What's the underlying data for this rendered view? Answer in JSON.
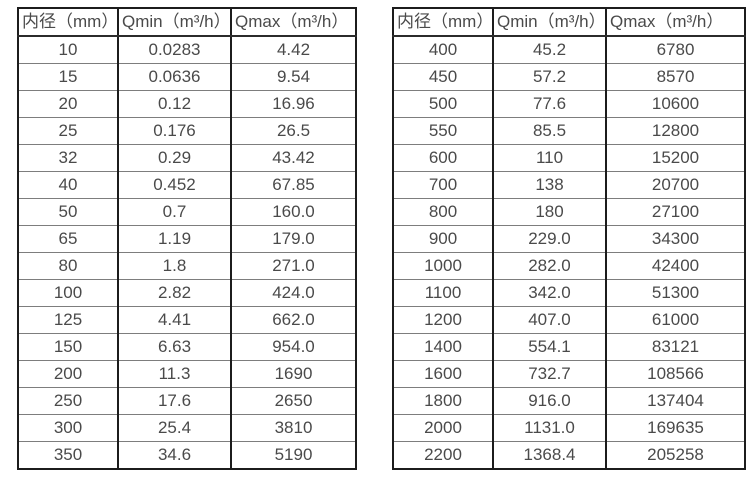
{
  "colors": {
    "background": "#ffffff",
    "border_strong": "#1c1c1c",
    "border_light": "#7d7d7d",
    "text": "#4a4a4a"
  },
  "tables": [
    {
      "name": "small-diameter-spec-table",
      "headers": [
        "内径（mm）",
        "Qmin（m³/h）",
        "Qmax（m³/h）"
      ],
      "rows": [
        [
          "10",
          "0.0283",
          "4.42"
        ],
        [
          "15",
          "0.0636",
          "9.54"
        ],
        [
          "20",
          "0.12",
          "16.96"
        ],
        [
          "25",
          "0.176",
          "26.5"
        ],
        [
          "32",
          "0.29",
          "43.42"
        ],
        [
          "40",
          "0.452",
          "67.85"
        ],
        [
          "50",
          "0.7",
          "160.0"
        ],
        [
          "65",
          "1.19",
          "179.0"
        ],
        [
          "80",
          "1.8",
          "271.0"
        ],
        [
          "100",
          "2.82",
          "424.0"
        ],
        [
          "125",
          "4.41",
          "662.0"
        ],
        [
          "150",
          "6.63",
          "954.0"
        ],
        [
          "200",
          "11.3",
          "1690"
        ],
        [
          "250",
          "17.6",
          "2650"
        ],
        [
          "300",
          "25.4",
          "3810"
        ],
        [
          "350",
          "34.6",
          "5190"
        ]
      ]
    },
    {
      "name": "large-diameter-spec-table",
      "headers": [
        "内径（mm）",
        "Qmin（m³/h）",
        "Qmax（m³/h）"
      ],
      "rows": [
        [
          "400",
          "45.2",
          "6780"
        ],
        [
          "450",
          "57.2",
          "8570"
        ],
        [
          "500",
          "77.6",
          "10600"
        ],
        [
          "550",
          "85.5",
          "12800"
        ],
        [
          "600",
          "110",
          "15200"
        ],
        [
          "700",
          "138",
          "20700"
        ],
        [
          "800",
          "180",
          "27100"
        ],
        [
          "900",
          "229.0",
          "34300"
        ],
        [
          "1000",
          "282.0",
          "42400"
        ],
        [
          "1100",
          "342.0",
          "51300"
        ],
        [
          "1200",
          "407.0",
          "61000"
        ],
        [
          "1400",
          "554.1",
          "83121"
        ],
        [
          "1600",
          "732.7",
          "108566"
        ],
        [
          "1800",
          "916.0",
          "137404"
        ],
        [
          "2000",
          "1131.0",
          "169635"
        ],
        [
          "2200",
          "1368.4",
          "205258"
        ]
      ]
    }
  ]
}
